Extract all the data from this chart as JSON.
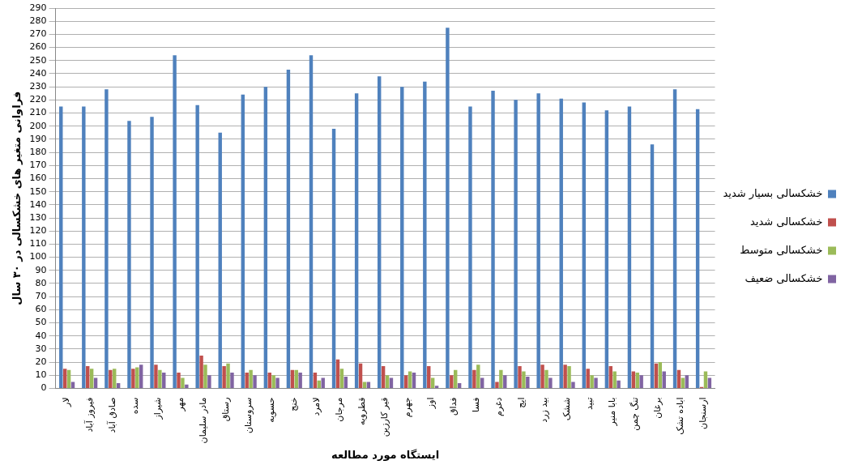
{
  "chart_data": {
    "type": "bar",
    "xlabel": "ایستگاه مورد مطالعه",
    "ylabel": "فراوانی متغیر های خشکسالی در ۳۰ سال",
    "categories": [
      "لار",
      "فیروز آباد",
      "صادق آباد",
      "سده",
      "شیراز",
      "مهر",
      "مادر سلیمان",
      "رستاق",
      "سروستان",
      "حسویه",
      "خنج",
      "لامرد",
      "مرجان",
      "قطرویه",
      "قیر کارزین",
      "جهرم",
      "اوز",
      "فداق",
      "فسا",
      "دغرم",
      "ایج",
      "بید زرد",
      "ششک",
      "تبید",
      "بابا منیر",
      "تنگ چمن",
      "برغان",
      "اباده تشک",
      "ارسنجان"
    ],
    "series": [
      {
        "name": "خشکسالی بسیار شدید",
        "color": "#4f81bd",
        "values": [
          215,
          215,
          228,
          204,
          207,
          254,
          216,
          195,
          224,
          230,
          243,
          254,
          198,
          225,
          238,
          230,
          234,
          275,
          215,
          227,
          220,
          225,
          221,
          218,
          212,
          215,
          186,
          228,
          213
        ]
      },
      {
        "name": "خشکسالی شدید",
        "color": "#c0504d",
        "values": [
          15,
          17,
          14,
          15,
          18,
          12,
          25,
          17,
          12,
          12,
          14,
          12,
          22,
          19,
          17,
          10,
          17,
          10,
          14,
          5,
          17,
          18,
          18,
          15,
          17,
          13,
          19,
          14,
          1
        ]
      },
      {
        "name": "خشکسالی متوسط",
        "color": "#9bbb59",
        "values": [
          14,
          15,
          15,
          16,
          14,
          8,
          18,
          19,
          14,
          10,
          14,
          6,
          15,
          5,
          10,
          13,
          8,
          14,
          18,
          14,
          13,
          14,
          17,
          10,
          13,
          12,
          20,
          8,
          13
        ]
      },
      {
        "name": "خشکسالی ضعیف",
        "color": "#8064a2",
        "values": [
          5,
          8,
          4,
          18,
          12,
          3,
          10,
          12,
          10,
          8,
          12,
          8,
          9,
          5,
          8,
          12,
          2,
          4,
          8,
          10,
          9,
          8,
          5,
          8,
          6,
          10,
          13,
          10,
          8
        ]
      }
    ],
    "ylim": [
      0,
      290
    ],
    "yticks": [
      0,
      10,
      20,
      30,
      40,
      50,
      60,
      70,
      80,
      90,
      100,
      110,
      120,
      130,
      140,
      150,
      160,
      170,
      180,
      190,
      200,
      210,
      220,
      230,
      240,
      250,
      260,
      270,
      280,
      290
    ],
    "grid": "y",
    "legend": "right"
  }
}
